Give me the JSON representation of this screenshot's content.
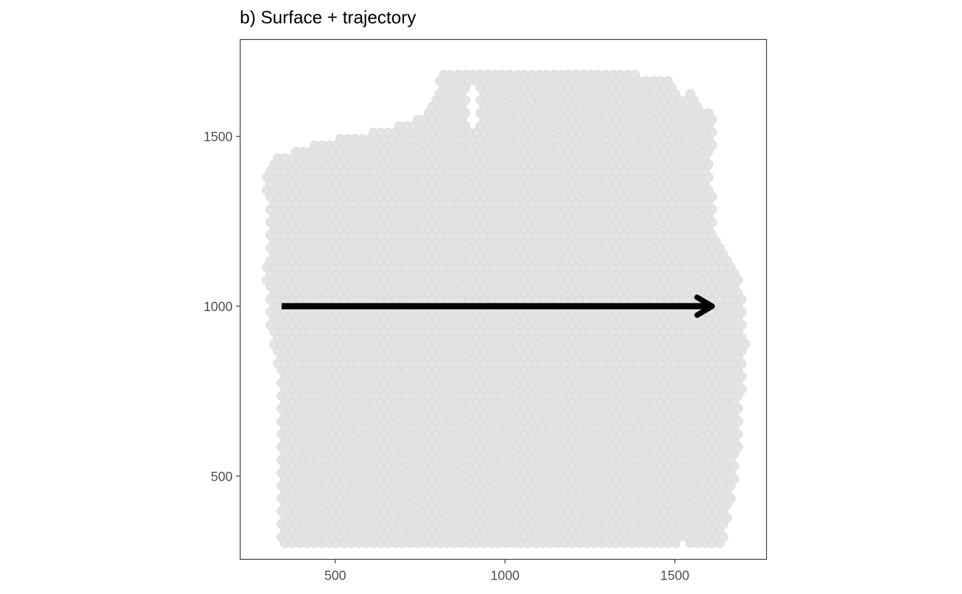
{
  "chart_data": {
    "type": "scatter",
    "title": "b) Surface + trajectory",
    "xlabel": "",
    "ylabel": "",
    "xlim": [
      220,
      1770
    ],
    "ylim": [
      255,
      1785
    ],
    "x_ticks": [
      500,
      1000,
      1500
    ],
    "y_ticks": [
      500,
      1000,
      1500
    ],
    "grid": false,
    "legend": "none",
    "point_color": "#e4e4e4",
    "point_stroke": "#d6d6d6",
    "spot_grid": {
      "x_start": 287,
      "x_step": 21.7,
      "y_start": 302,
      "y_step": 18.9,
      "row_offset": 10.85
    },
    "spot_extent_by_y": [
      {
        "y": 302,
        "x_min": 335,
        "x_max": 1640
      },
      {
        "y": 400,
        "x_min": 335,
        "x_max": 1660
      },
      {
        "y": 520,
        "x_min": 335,
        "x_max": 1685
      },
      {
        "y": 620,
        "x_min": 340,
        "x_max": 1690
      },
      {
        "y": 790,
        "x_min": 335,
        "x_max": 1700
      },
      {
        "y": 900,
        "x_min": 310,
        "x_max": 1710
      },
      {
        "y": 1000,
        "x_min": 305,
        "x_max": 1700
      },
      {
        "y": 1100,
        "x_min": 290,
        "x_max": 1695
      },
      {
        "y": 1150,
        "x_min": 298,
        "x_max": 1660
      },
      {
        "y": 1200,
        "x_min": 300,
        "x_max": 1618
      },
      {
        "y": 1300,
        "x_min": 300,
        "x_max": 1612
      },
      {
        "y": 1380,
        "x_min": 290,
        "x_max": 1610
      },
      {
        "y": 1440,
        "x_min": 325,
        "x_max": 1610
      },
      {
        "y": 1480,
        "x_min": 440,
        "x_max": 1615
      },
      {
        "y": 1520,
        "x_min": 640,
        "x_max": 1620
      },
      {
        "y": 1560,
        "x_min": 760,
        "x_max": 1610
      },
      {
        "y": 1620,
        "x_min": 790,
        "x_max": 1560
      },
      {
        "y": 1660,
        "x_min": 805,
        "x_max": 1500
      },
      {
        "y": 1700,
        "x_min": 805,
        "x_max": 1290
      }
    ],
    "notches": [
      {
        "x": 905,
        "y_from": 1530,
        "y_to": 1660
      },
      {
        "x": 1520,
        "y_from": 1610,
        "y_to": 1650
      },
      {
        "x": 1530,
        "y_from": 295,
        "y_to": 312
      }
    ],
    "arrow": {
      "start": [
        342,
        1000
      ],
      "end": [
        1610,
        1000
      ],
      "color": "#000000"
    }
  }
}
